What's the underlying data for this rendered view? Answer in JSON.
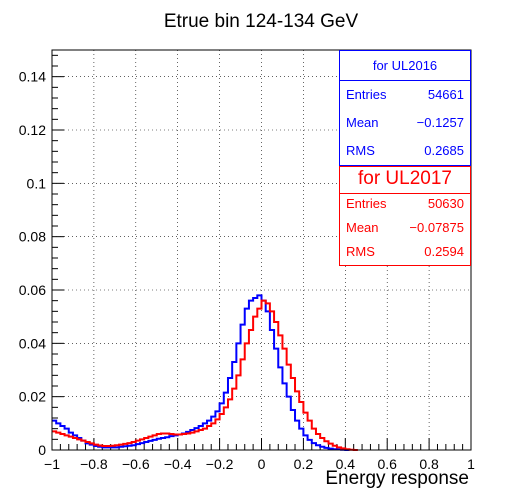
{
  "chart_data": {
    "type": "line",
    "title": "Etrue bin 124-134 GeV",
    "xlabel": "Energy response",
    "ylabel": "",
    "xlim": [
      -1,
      1
    ],
    "ylim": [
      0,
      0.15
    ],
    "grid": true,
    "xticks": [
      -1,
      -0.8,
      -0.6,
      -0.4,
      -0.2,
      0,
      0.2,
      0.4,
      0.6,
      0.8,
      1
    ],
    "xtick_labels": [
      "−1",
      "−0.8",
      "−0.6",
      "−0.4",
      "−0.2",
      "0",
      "0.2",
      "0.4",
      "0.6",
      "0.8",
      "1"
    ],
    "yticks": [
      0,
      0.02,
      0.04,
      0.06,
      0.08,
      0.1,
      0.12,
      0.14
    ],
    "ytick_labels": [
      "0",
      "0.02",
      "0.04",
      "0.06",
      "0.08",
      "0.1",
      "0.12",
      "0.14"
    ],
    "bin_edges": [
      -1,
      -0.02,
      0,
      0.02,
      1
    ],
    "series": [
      {
        "name": "for UL2016",
        "color": "#0000ff",
        "x": [
          -1.0,
          -0.98,
          -0.96,
          -0.94,
          -0.92,
          -0.9,
          -0.88,
          -0.86,
          -0.84,
          -0.82,
          -0.8,
          -0.78,
          -0.76,
          -0.74,
          -0.72,
          -0.7,
          -0.68,
          -0.66,
          -0.64,
          -0.62,
          -0.6,
          -0.58,
          -0.56,
          -0.54,
          -0.52,
          -0.5,
          -0.48,
          -0.46,
          -0.44,
          -0.42,
          -0.4,
          -0.38,
          -0.36,
          -0.34,
          -0.32,
          -0.3,
          -0.28,
          -0.26,
          -0.24,
          -0.22,
          -0.2,
          -0.18,
          -0.16,
          -0.14,
          -0.12,
          -0.1,
          -0.08,
          -0.06,
          -0.04,
          -0.02,
          0.0,
          0.02,
          0.04,
          0.06,
          0.08,
          0.1,
          0.12,
          0.14,
          0.16,
          0.18,
          0.2,
          0.22,
          0.24,
          0.26,
          0.28,
          0.3,
          0.32,
          0.34,
          0.36,
          0.38,
          0.4
        ],
        "values": [
          0.011,
          0.01,
          0.009,
          0.008,
          0.0065,
          0.0055,
          0.0045,
          0.0035,
          0.0025,
          0.002,
          0.0015,
          0.0012,
          0.001,
          0.001,
          0.001,
          0.001,
          0.0012,
          0.0014,
          0.0016,
          0.0018,
          0.0022,
          0.0026,
          0.003,
          0.0034,
          0.0038,
          0.0042,
          0.0045,
          0.0048,
          0.0052,
          0.0055,
          0.0058,
          0.0062,
          0.0068,
          0.0075,
          0.0082,
          0.009,
          0.01,
          0.011,
          0.0125,
          0.0145,
          0.0175,
          0.0215,
          0.027,
          0.033,
          0.04,
          0.047,
          0.053,
          0.056,
          0.057,
          0.058,
          0.056,
          0.052,
          0.045,
          0.038,
          0.031,
          0.025,
          0.02,
          0.015,
          0.011,
          0.008,
          0.0055,
          0.0038,
          0.0026,
          0.0018,
          0.0012,
          0.0008,
          0.0005,
          0.0003,
          0.0002,
          0.0001,
          0.0
        ]
      },
      {
        "name": "for UL2017",
        "color": "#ff0000",
        "x": [
          -1.0,
          -0.98,
          -0.96,
          -0.94,
          -0.92,
          -0.9,
          -0.88,
          -0.86,
          -0.84,
          -0.82,
          -0.8,
          -0.78,
          -0.76,
          -0.74,
          -0.72,
          -0.7,
          -0.68,
          -0.66,
          -0.64,
          -0.62,
          -0.6,
          -0.58,
          -0.56,
          -0.54,
          -0.52,
          -0.5,
          -0.48,
          -0.46,
          -0.44,
          -0.42,
          -0.4,
          -0.38,
          -0.36,
          -0.34,
          -0.32,
          -0.3,
          -0.28,
          -0.26,
          -0.24,
          -0.22,
          -0.2,
          -0.18,
          -0.16,
          -0.14,
          -0.12,
          -0.1,
          -0.08,
          -0.06,
          -0.04,
          -0.02,
          0.0,
          0.02,
          0.04,
          0.06,
          0.08,
          0.1,
          0.12,
          0.14,
          0.16,
          0.18,
          0.2,
          0.22,
          0.24,
          0.26,
          0.28,
          0.3,
          0.32,
          0.34,
          0.36,
          0.38,
          0.4,
          0.42,
          0.44
        ],
        "values": [
          0.007,
          0.0065,
          0.006,
          0.0055,
          0.005,
          0.0045,
          0.004,
          0.0035,
          0.003,
          0.0025,
          0.002,
          0.0017,
          0.0015,
          0.0015,
          0.0016,
          0.0018,
          0.002,
          0.0023,
          0.0026,
          0.003,
          0.0035,
          0.004,
          0.0045,
          0.005,
          0.0055,
          0.006,
          0.0062,
          0.0062,
          0.006,
          0.0058,
          0.0058,
          0.006,
          0.0062,
          0.0065,
          0.007,
          0.0075,
          0.008,
          0.009,
          0.01,
          0.0115,
          0.0135,
          0.016,
          0.019,
          0.023,
          0.028,
          0.034,
          0.04,
          0.045,
          0.05,
          0.053,
          0.056,
          0.055,
          0.052,
          0.048,
          0.043,
          0.038,
          0.032,
          0.027,
          0.022,
          0.018,
          0.014,
          0.011,
          0.008,
          0.006,
          0.0045,
          0.0033,
          0.0024,
          0.0016,
          0.001,
          0.0006,
          0.0003,
          0.0001,
          0.0
        ]
      }
    ]
  },
  "stats": {
    "ul2016": {
      "title": "for UL2016",
      "rows": [
        {
          "key": "Entries",
          "value": "54661"
        },
        {
          "key": "Mean",
          "value": "−0.1257"
        },
        {
          "key": "RMS",
          "value": "0.2685"
        }
      ],
      "color": "#0000ff"
    },
    "ul2017": {
      "title": "for UL2017",
      "rows": [
        {
          "key": "Entries",
          "value": "50630"
        },
        {
          "key": "Mean",
          "value": "−0.07875"
        },
        {
          "key": "RMS",
          "value": "0.2594"
        }
      ],
      "color": "#ff0000"
    }
  }
}
